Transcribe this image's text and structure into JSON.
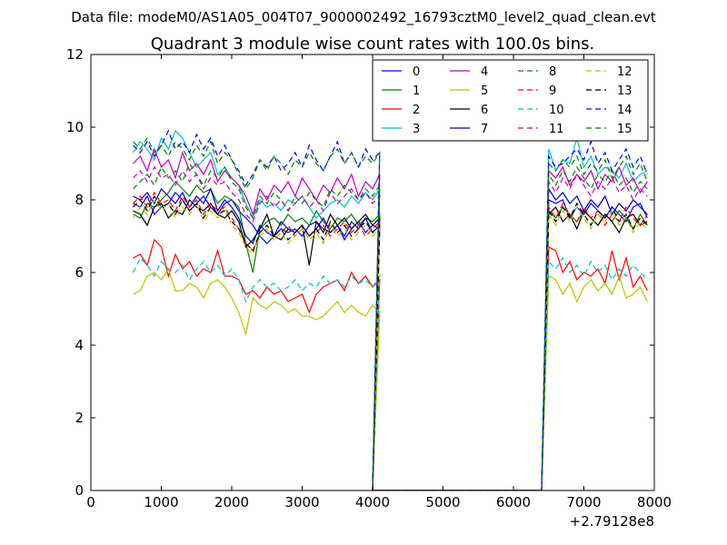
{
  "chart_data": {
    "type": "line",
    "suptitle": "Data file: modeM0/AS1A05_004T07_9000002492_16793cztM0_level2_quad_clean.evt",
    "title": "Quadrant 3 module wise count rates with 100.0s bins.",
    "xlabel": "",
    "ylabel": "",
    "x_offset_label": "+2.79128e8",
    "xlim": [
      0,
      8000
    ],
    "ylim": [
      0,
      12
    ],
    "xticks": [
      0,
      1000,
      2000,
      3000,
      4000,
      5000,
      6000,
      7000,
      8000
    ],
    "yticks": [
      0,
      2,
      4,
      6,
      8,
      10,
      12
    ],
    "x_start": 600,
    "x_step": 100,
    "gap": {
      "last_value_x": 3900,
      "first_zero_x": 4000,
      "last_zero_x": 6400,
      "first_recovery_x": 6500
    },
    "legend_position": "top-right",
    "series": [
      {
        "name": "0",
        "color": "#0000ff",
        "style": "solid",
        "segA": [
          7.9,
          7.8,
          8.1,
          7.6,
          7.8,
          7.9,
          8.2,
          8.0,
          7.7,
          7.9,
          8.1,
          7.8,
          7.6,
          7.9,
          8.0,
          7.7,
          7.5,
          7.3,
          7.0,
          6.8,
          7.0,
          7.2,
          7.1,
          7.2,
          7.0,
          7.3,
          7.4,
          7.2,
          7.1,
          7.3,
          6.9,
          7.2,
          7.4,
          7.1,
          7.3,
          7.2
        ],
        "segB": [
          8.0,
          7.9,
          8.0,
          7.5,
          7.8,
          7.6,
          7.9,
          7.7,
          7.5,
          7.8,
          7.6,
          7.4,
          7.8,
          7.9,
          7.5
        ]
      },
      {
        "name": "1",
        "color": "#008000",
        "style": "solid",
        "segA": [
          7.6,
          7.5,
          7.9,
          7.8,
          8.0,
          8.2,
          8.5,
          8.3,
          8.1,
          8.4,
          8.2,
          8.3,
          7.9,
          8.1,
          8.0,
          7.8,
          6.8,
          6.0,
          7.2,
          7.4,
          7.5,
          7.3,
          7.6,
          7.4,
          7.5,
          7.3,
          7.7,
          7.4,
          7.2,
          7.5,
          7.4,
          7.6,
          7.3,
          7.5,
          7.4,
          7.6
        ],
        "segB": [
          7.7,
          7.5,
          7.8,
          7.6,
          7.4,
          7.7,
          7.5,
          7.3,
          7.6,
          7.4,
          7.7,
          7.5,
          7.2,
          7.6,
          7.3
        ]
      },
      {
        "name": "2",
        "color": "#ff0000",
        "style": "solid",
        "segA": [
          6.4,
          6.5,
          6.2,
          6.9,
          6.7,
          5.9,
          6.5,
          6.1,
          6.3,
          5.9,
          6.1,
          6.0,
          6.6,
          5.9,
          5.9,
          5.8,
          5.4,
          5.5,
          5.3,
          5.6,
          5.4,
          5.5,
          5.2,
          5.3,
          5.4,
          4.9,
          5.4,
          5.6,
          5.7,
          5.8,
          5.5,
          6.0,
          5.7,
          5.9,
          5.6,
          5.8
        ],
        "segB": [
          6.7,
          6.6,
          6.0,
          6.3,
          5.8,
          6.0,
          5.9,
          6.1,
          5.7,
          6.6,
          5.8,
          6.4,
          5.6,
          5.9,
          5.5
        ]
      },
      {
        "name": "3",
        "color": "#00bfbf",
        "style": "solid",
        "segA": [
          9.3,
          9.6,
          9.4,
          9.1,
          9.7,
          9.4,
          9.9,
          9.7,
          9.3,
          8.9,
          9.1,
          9.3,
          8.7,
          8.9,
          8.6,
          8.4,
          7.9,
          7.5,
          8.0,
          7.8,
          7.9,
          7.7,
          8.0,
          7.9,
          8.1,
          7.8,
          7.5,
          7.7,
          7.9,
          8.0,
          7.8,
          8.1,
          7.9,
          8.2,
          8.0,
          8.3
        ],
        "segB": [
          9.4,
          8.8,
          9.1,
          9.0,
          9.7,
          8.9,
          9.2,
          8.7,
          8.9,
          8.8,
          8.6,
          9.0,
          8.5,
          8.7,
          8.8
        ]
      },
      {
        "name": "4",
        "color": "#bf00bf",
        "style": "solid",
        "segA": [
          9.0,
          9.2,
          8.8,
          9.4,
          8.9,
          9.1,
          8.6,
          9.3,
          8.8,
          9.0,
          8.7,
          9.1,
          8.5,
          8.8,
          8.6,
          8.4,
          8.1,
          7.6,
          8.3,
          8.0,
          8.4,
          8.2,
          8.5,
          8.1,
          8.6,
          8.3,
          8.0,
          8.4,
          8.2,
          8.6,
          8.3,
          8.7,
          8.1,
          8.5,
          8.3,
          8.7
        ],
        "segB": [
          8.8,
          8.6,
          8.9,
          8.4,
          8.7,
          8.5,
          8.8,
          8.3,
          8.7,
          8.5,
          8.9,
          8.4,
          8.6,
          8.2,
          8.5
        ]
      },
      {
        "name": "5",
        "color": "#bfbf00",
        "style": "solid",
        "segA": [
          5.4,
          5.5,
          5.9,
          6.0,
          5.8,
          6.1,
          5.5,
          5.5,
          5.7,
          5.6,
          5.3,
          5.7,
          5.8,
          5.6,
          5.3,
          4.9,
          4.3,
          5.3,
          5.1,
          5.0,
          5.2,
          5.1,
          4.9,
          5.0,
          4.8,
          4.8,
          4.7,
          4.8,
          5.0,
          5.2,
          4.9,
          5.1,
          4.9,
          4.8,
          5.1,
          4.9
        ],
        "segB": [
          5.9,
          5.8,
          5.4,
          5.7,
          5.2,
          5.6,
          5.8,
          5.5,
          5.7,
          5.4,
          5.9,
          5.3,
          5.4,
          5.6,
          5.2
        ]
      },
      {
        "name": "6",
        "color": "#000000",
        "style": "solid",
        "segA": [
          7.7,
          7.6,
          7.3,
          7.8,
          7.9,
          7.5,
          7.7,
          7.6,
          8.0,
          7.8,
          7.7,
          7.9,
          7.6,
          7.5,
          7.7,
          7.4,
          6.7,
          6.9,
          7.2,
          7.6,
          7.0,
          6.9,
          7.2,
          7.1,
          7.3,
          6.2,
          7.4,
          7.1,
          7.6,
          7.3,
          7.5,
          7.2,
          7.4,
          7.6,
          7.3,
          7.5
        ],
        "segB": [
          7.6,
          7.8,
          7.4,
          7.6,
          7.2,
          7.7,
          7.5,
          7.3,
          7.6,
          7.4,
          7.1,
          7.5,
          7.6,
          7.3,
          7.4
        ]
      },
      {
        "name": "7",
        "color": "#0000bf",
        "style": "solid",
        "segA": [
          8.1,
          8.0,
          8.2,
          7.9,
          8.3,
          8.1,
          7.9,
          8.2,
          7.8,
          8.1,
          7.9,
          8.3,
          7.7,
          8.0,
          7.8,
          7.5,
          7.0,
          6.8,
          7.3,
          7.1,
          7.0,
          7.4,
          7.2,
          7.1,
          7.3,
          7.0,
          7.2,
          7.5,
          7.1,
          7.3,
          7.0,
          7.4,
          7.2,
          7.5,
          7.1,
          7.3
        ],
        "segB": [
          8.3,
          8.0,
          8.2,
          7.9,
          8.1,
          7.7,
          8.0,
          7.8,
          8.1,
          7.6,
          7.9,
          7.7,
          8.0,
          7.8,
          7.6
        ]
      },
      {
        "name": "8",
        "color": "#008000",
        "style": "dashed",
        "segA": [
          8.3,
          8.5,
          8.7,
          8.4,
          8.9,
          8.6,
          8.8,
          8.5,
          9.0,
          8.7,
          8.4,
          8.8,
          8.6,
          8.9,
          8.5,
          8.3,
          7.8,
          7.5,
          8.1,
          7.9,
          8.2,
          8.0,
          7.7,
          8.1,
          7.9,
          8.2,
          8.0,
          7.8,
          8.3,
          8.1,
          8.4,
          8.2,
          8.0,
          8.3,
          8.1,
          8.4
        ],
        "segB": [
          8.7,
          8.4,
          8.8,
          8.5,
          8.9,
          8.6,
          8.3,
          8.7,
          8.5,
          8.8,
          8.4,
          8.6,
          8.2,
          8.5,
          8.3
        ]
      },
      {
        "name": "9",
        "color": "#ff0000",
        "style": "dashed",
        "segA": [
          7.9,
          8.1,
          7.8,
          8.2,
          7.9,
          8.0,
          7.7,
          8.1,
          7.8,
          8.0,
          7.6,
          7.9,
          7.7,
          7.8,
          7.5,
          7.2,
          6.8,
          6.6,
          7.0,
          7.2,
          6.9,
          7.1,
          7.3,
          7.0,
          7.2,
          6.9,
          7.1,
          7.3,
          7.0,
          7.2,
          7.4,
          7.1,
          7.3,
          7.0,
          7.2,
          7.4
        ],
        "segB": [
          7.8,
          7.5,
          7.9,
          7.6,
          7.4,
          7.8,
          7.5,
          7.7,
          7.3,
          7.6,
          7.4,
          7.8,
          7.5,
          7.3,
          7.6
        ]
      },
      {
        "name": "10",
        "color": "#00bfbf",
        "style": "dashed",
        "segA": [
          6.0,
          6.4,
          6.2,
          5.9,
          6.3,
          6.1,
          6.0,
          6.2,
          5.8,
          6.1,
          6.3,
          6.0,
          6.2,
          5.9,
          6.1,
          5.8,
          5.2,
          5.6,
          5.8,
          5.6,
          5.7,
          5.5,
          5.6,
          5.8,
          5.5,
          5.7,
          5.6,
          5.9,
          5.7,
          5.8,
          5.6,
          5.9,
          5.7,
          5.8,
          5.6,
          5.9
        ],
        "segB": [
          6.3,
          6.1,
          6.4,
          6.0,
          6.2,
          5.9,
          6.3,
          6.0,
          6.2,
          5.8,
          6.1,
          5.9,
          6.2,
          6.0,
          5.8
        ]
      },
      {
        "name": "11",
        "color": "#bf00bf",
        "style": "dashed",
        "segA": [
          8.6,
          8.8,
          8.5,
          8.9,
          8.6,
          8.7,
          8.4,
          8.8,
          8.5,
          8.7,
          8.3,
          8.6,
          8.4,
          8.5,
          8.2,
          8.0,
          7.6,
          7.4,
          7.9,
          8.1,
          7.8,
          8.0,
          7.7,
          7.9,
          8.1,
          7.8,
          8.0,
          7.7,
          8.2,
          7.9,
          8.1,
          8.3,
          8.0,
          8.2,
          7.9,
          8.1
        ],
        "segB": [
          8.5,
          8.2,
          8.6,
          8.3,
          8.7,
          8.4,
          8.1,
          8.5,
          8.3,
          8.6,
          8.2,
          8.4,
          8.0,
          8.3,
          8.1
        ]
      },
      {
        "name": "12",
        "color": "#bfbf00",
        "style": "dashed",
        "segA": [
          7.5,
          7.8,
          7.6,
          8.0,
          7.7,
          7.9,
          7.5,
          7.8,
          7.6,
          7.9,
          7.4,
          7.7,
          7.5,
          7.8,
          7.3,
          7.1,
          6.7,
          6.5,
          7.0,
          7.2,
          6.9,
          7.1,
          6.8,
          7.0,
          7.2,
          6.9,
          7.1,
          6.8,
          7.3,
          7.0,
          7.2,
          6.9,
          7.1,
          7.3,
          7.0,
          7.2
        ],
        "segB": [
          7.6,
          7.3,
          7.7,
          7.4,
          7.8,
          7.5,
          7.2,
          7.6,
          7.4,
          7.7,
          7.3,
          7.5,
          7.1,
          7.4,
          7.2
        ]
      },
      {
        "name": "13",
        "color": "#000000",
        "style": "dashed",
        "segA": [
          7.8,
          8.0,
          7.7,
          8.1,
          7.8,
          7.9,
          7.6,
          8.0,
          7.7,
          7.9,
          7.5,
          7.8,
          7.6,
          7.7,
          7.4,
          7.2,
          6.8,
          6.6,
          7.1,
          7.3,
          7.0,
          7.2,
          6.9,
          7.1,
          7.3,
          7.0,
          7.2,
          6.9,
          7.4,
          7.1,
          7.3,
          7.0,
          7.2,
          7.4,
          7.1,
          7.3
        ],
        "segB": [
          7.7,
          7.4,
          7.8,
          7.5,
          7.9,
          7.6,
          7.3,
          7.7,
          7.5,
          7.8,
          7.4,
          7.6,
          7.2,
          7.5,
          7.3
        ]
      },
      {
        "name": "14",
        "color": "#0000ff",
        "style": "dashed",
        "segA": [
          9.5,
          9.3,
          9.6,
          9.2,
          9.5,
          9.9,
          9.4,
          9.6,
          9.3,
          9.8,
          9.4,
          9.7,
          9.2,
          9.5,
          9.1,
          8.8,
          8.4,
          8.7,
          9.1,
          8.9,
          9.2,
          8.8,
          9.0,
          9.3,
          8.9,
          9.5,
          9.1,
          8.8,
          9.2,
          9.6,
          9.0,
          9.3,
          8.9,
          9.4,
          9.1,
          9.3
        ],
        "segB": [
          9.2,
          8.9,
          9.0,
          9.2,
          9.4,
          9.1,
          9.6,
          9.0,
          9.3,
          8.8,
          9.1,
          9.4,
          8.9,
          9.2,
          8.7
        ]
      },
      {
        "name": "15",
        "color": "#008000",
        "style": "dashed",
        "segA": [
          9.6,
          9.4,
          9.7,
          9.3,
          9.5,
          9.2,
          9.6,
          9.4,
          9.1,
          9.5,
          9.2,
          9.6,
          9.0,
          9.3,
          9.1,
          8.7,
          8.3,
          8.6,
          9.1,
          8.8,
          9.2,
          9.0,
          8.7,
          9.1,
          8.9,
          9.3,
          9.0,
          8.8,
          9.2,
          9.4,
          9.0,
          9.3,
          8.9,
          9.2,
          9.0,
          9.3
        ],
        "segB": [
          9.0,
          8.8,
          9.1,
          8.9,
          9.2,
          8.7,
          9.0,
          8.8,
          9.1,
          8.6,
          8.9,
          9.2,
          8.7,
          9.0,
          8.5
        ]
      }
    ]
  }
}
